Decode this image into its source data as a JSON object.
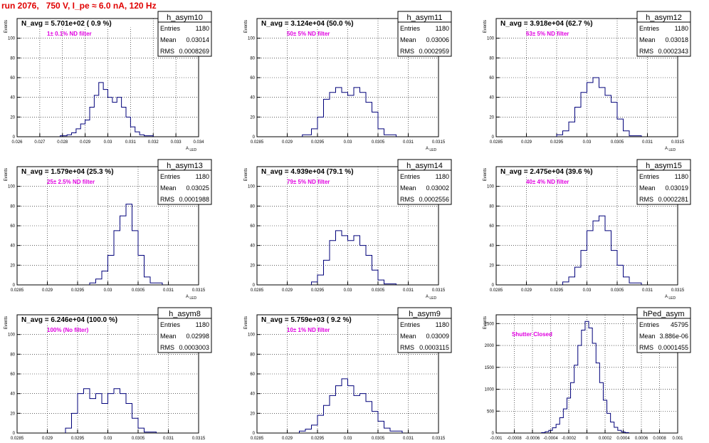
{
  "header": {
    "title": "run 2076,   750 V, I_pe ≈ 6.0 nA, 120 Hz"
  },
  "stats_labels": {
    "entries": "Entries",
    "mean": "Mean",
    "rms": "RMS"
  },
  "colors": {
    "title": "#e00000",
    "annotation": "#e000e0",
    "histogram": "#00007a",
    "grid": "#000000"
  },
  "chart_data": [
    {
      "type": "histogram",
      "name": "h_asym10",
      "navg": "N_avg = 5.701e+02 ( 0.9 %)",
      "filter": "1± 0.1% ND filter",
      "stats": {
        "entries": "1180",
        "mean": "0.03014",
        "rms": "0.0008269"
      },
      "ylabel": "Events",
      "xlabel": "A_LED",
      "xlim": [
        0.026,
        0.034
      ],
      "ylim": [
        0,
        120
      ],
      "xticks": [
        "0.026",
        "0.027",
        "0.028",
        "0.029",
        "0.03",
        "0.031",
        "0.032",
        "0.033",
        "0.034"
      ],
      "yticks": [
        "0",
        "20",
        "40",
        "60",
        "80",
        "100"
      ],
      "bins": [
        [
          0.0279,
          0.0282,
          1
        ],
        [
          0.0282,
          0.0284,
          2
        ],
        [
          0.0284,
          0.0286,
          4
        ],
        [
          0.0286,
          0.0288,
          8
        ],
        [
          0.0288,
          0.029,
          13
        ],
        [
          0.029,
          0.0292,
          17
        ],
        [
          0.0292,
          0.0294,
          30
        ],
        [
          0.0294,
          0.0296,
          42
        ],
        [
          0.0296,
          0.0298,
          55
        ],
        [
          0.0298,
          0.03,
          48
        ],
        [
          0.03,
          0.0302,
          40
        ],
        [
          0.0302,
          0.0304,
          35
        ],
        [
          0.0304,
          0.0306,
          40
        ],
        [
          0.0306,
          0.0308,
          30
        ],
        [
          0.0308,
          0.031,
          20
        ],
        [
          0.031,
          0.0312,
          10
        ],
        [
          0.0312,
          0.0314,
          5
        ],
        [
          0.0314,
          0.0316,
          2
        ],
        [
          0.0316,
          0.032,
          1
        ]
      ]
    },
    {
      "type": "histogram",
      "name": "h_asym11",
      "navg": "N_avg = 3.124e+04 (50.0 %)",
      "filter": "50± 5% ND filter",
      "stats": {
        "entries": "1180",
        "mean": "0.03006",
        "rms": "0.0002959"
      },
      "ylabel": "Events",
      "xlabel": "A_LED",
      "xlim": [
        0.0285,
        0.0315
      ],
      "ylim": [
        0,
        120
      ],
      "xticks": [
        "0.0285",
        "0.029",
        "0.0295",
        "0.03",
        "0.0305",
        "0.031",
        "0.0315"
      ],
      "yticks": [
        "0",
        "20",
        "40",
        "60",
        "80",
        "100"
      ],
      "bins": [
        [
          0.02925,
          0.0294,
          2
        ],
        [
          0.0294,
          0.0295,
          8
        ],
        [
          0.0295,
          0.0296,
          20
        ],
        [
          0.0296,
          0.0297,
          38
        ],
        [
          0.0297,
          0.0298,
          45
        ],
        [
          0.0298,
          0.0299,
          50
        ],
        [
          0.0299,
          0.03,
          45
        ],
        [
          0.03,
          0.0301,
          42
        ],
        [
          0.0301,
          0.0302,
          50
        ],
        [
          0.0302,
          0.0303,
          45
        ],
        [
          0.0303,
          0.0304,
          35
        ],
        [
          0.0304,
          0.0305,
          25
        ],
        [
          0.0305,
          0.0306,
          8
        ],
        [
          0.0306,
          0.0308,
          2
        ]
      ]
    },
    {
      "type": "histogram",
      "name": "h_asym12",
      "navg": "N_avg = 3.918e+04 (62.7 %)",
      "filter": "63± 5% ND filter",
      "stats": {
        "entries": "1180",
        "mean": "0.03018",
        "rms": "0.0002343"
      },
      "ylabel": "Events",
      "xlabel": "A_LED",
      "xlim": [
        0.0285,
        0.0315
      ],
      "ylim": [
        0,
        120
      ],
      "xticks": [
        "0.0285",
        "0.029",
        "0.0295",
        "0.03",
        "0.0305",
        "0.031",
        "0.0315"
      ],
      "yticks": [
        "0",
        "20",
        "40",
        "60",
        "80",
        "100"
      ],
      "bins": [
        [
          0.0295,
          0.0296,
          2
        ],
        [
          0.0296,
          0.0297,
          6
        ],
        [
          0.0297,
          0.0298,
          15
        ],
        [
          0.0298,
          0.0299,
          30
        ],
        [
          0.0299,
          0.03,
          45
        ],
        [
          0.03,
          0.0301,
          55
        ],
        [
          0.0301,
          0.0302,
          60
        ],
        [
          0.0302,
          0.0303,
          50
        ],
        [
          0.0303,
          0.0304,
          42
        ],
        [
          0.0304,
          0.0305,
          35
        ],
        [
          0.0305,
          0.0306,
          18
        ],
        [
          0.0306,
          0.0307,
          6
        ],
        [
          0.0307,
          0.0309,
          1
        ]
      ]
    },
    {
      "type": "histogram",
      "name": "h_asym13",
      "navg": "N_avg = 1.579e+04 (25.3 %)",
      "filter": "25± 2.5% ND filter",
      "stats": {
        "entries": "1180",
        "mean": "0.03025",
        "rms": "0.0001988"
      },
      "ylabel": "Events",
      "xlabel": "A_LED",
      "xlim": [
        0.0285,
        0.0315
      ],
      "ylim": [
        0,
        120
      ],
      "xticks": [
        "0.0285",
        "0.029",
        "0.0295",
        "0.03",
        "0.0305",
        "0.031",
        "0.0315"
      ],
      "yticks": [
        "0",
        "20",
        "40",
        "60",
        "80",
        "100"
      ],
      "bins": [
        [
          0.0297,
          0.0298,
          2
        ],
        [
          0.0298,
          0.0299,
          6
        ],
        [
          0.0299,
          0.03,
          14
        ],
        [
          0.03,
          0.0301,
          30
        ],
        [
          0.0301,
          0.0302,
          55
        ],
        [
          0.0302,
          0.0303,
          70
        ],
        [
          0.0303,
          0.0304,
          82
        ],
        [
          0.0304,
          0.0305,
          55
        ],
        [
          0.0305,
          0.0306,
          30
        ],
        [
          0.0306,
          0.0307,
          8
        ],
        [
          0.0307,
          0.0309,
          2
        ]
      ]
    },
    {
      "type": "histogram",
      "name": "h_asym14",
      "navg": "N_avg = 4.939e+04 (79.1 %)",
      "filter": "79± 5% ND filter",
      "stats": {
        "entries": "1180",
        "mean": "0.03002",
        "rms": "0.0002556"
      },
      "ylabel": "Events",
      "xlabel": "A_LED",
      "xlim": [
        0.0285,
        0.0315
      ],
      "ylim": [
        0,
        120
      ],
      "xticks": [
        "0.0285",
        "0.029",
        "0.0295",
        "0.03",
        "0.0305",
        "0.031",
        "0.0315"
      ],
      "yticks": [
        "0",
        "20",
        "40",
        "60",
        "80",
        "100"
      ],
      "bins": [
        [
          0.0294,
          0.0295,
          3
        ],
        [
          0.0295,
          0.0296,
          10
        ],
        [
          0.0296,
          0.0297,
          25
        ],
        [
          0.0297,
          0.0298,
          45
        ],
        [
          0.0298,
          0.0299,
          55
        ],
        [
          0.0299,
          0.03,
          50
        ],
        [
          0.03,
          0.0301,
          45
        ],
        [
          0.0301,
          0.0302,
          50
        ],
        [
          0.0302,
          0.0303,
          40
        ],
        [
          0.0303,
          0.0304,
          30
        ],
        [
          0.0304,
          0.0305,
          15
        ],
        [
          0.0305,
          0.0306,
          5
        ],
        [
          0.0306,
          0.0308,
          1
        ]
      ]
    },
    {
      "type": "histogram",
      "name": "h_asym15",
      "navg": "N_avg = 2.475e+04 (39.6 %)",
      "filter": "40± 4% ND filter",
      "stats": {
        "entries": "1180",
        "mean": "0.03019",
        "rms": "0.0002281"
      },
      "ylabel": "Events",
      "xlabel": "A_LED",
      "xlim": [
        0.0285,
        0.0315
      ],
      "ylim": [
        0,
        120
      ],
      "xticks": [
        "0.0285",
        "0.029",
        "0.0295",
        "0.03",
        "0.0305",
        "0.031",
        "0.0315"
      ],
      "yticks": [
        "0",
        "20",
        "40",
        "60",
        "80",
        "100"
      ],
      "bins": [
        [
          0.0296,
          0.0297,
          3
        ],
        [
          0.0297,
          0.0298,
          8
        ],
        [
          0.0298,
          0.0299,
          18
        ],
        [
          0.0299,
          0.03,
          35
        ],
        [
          0.03,
          0.0301,
          55
        ],
        [
          0.0301,
          0.0302,
          65
        ],
        [
          0.0302,
          0.0303,
          70
        ],
        [
          0.0303,
          0.0304,
          55
        ],
        [
          0.0304,
          0.0305,
          35
        ],
        [
          0.0305,
          0.0306,
          20
        ],
        [
          0.0306,
          0.0307,
          8
        ],
        [
          0.0307,
          0.0309,
          2
        ]
      ]
    },
    {
      "type": "histogram",
      "name": "h_asym8",
      "navg": "N_avg = 6.246e+04 (100.0 %)",
      "filter": "100% (No filter)",
      "stats": {
        "entries": "1180",
        "mean": "0.02998",
        "rms": "0.0003003"
      },
      "ylabel": "Events",
      "xlabel": "A_LED",
      "xlim": [
        0.0285,
        0.0315
      ],
      "ylim": [
        0,
        120
      ],
      "xticks": [
        "0.0285",
        "0.029",
        "0.0295",
        "0.03",
        "0.0305",
        "0.031",
        "0.0315"
      ],
      "yticks": [
        "0",
        "20",
        "40",
        "60",
        "80",
        "100"
      ],
      "bins": [
        [
          0.0293,
          0.0294,
          5
        ],
        [
          0.0294,
          0.0295,
          20
        ],
        [
          0.0295,
          0.0296,
          40
        ],
        [
          0.0296,
          0.0297,
          45
        ],
        [
          0.0297,
          0.0298,
          35
        ],
        [
          0.0298,
          0.0299,
          40
        ],
        [
          0.0299,
          0.03,
          30
        ],
        [
          0.03,
          0.0301,
          40
        ],
        [
          0.0301,
          0.0302,
          45
        ],
        [
          0.0302,
          0.0303,
          40
        ],
        [
          0.0303,
          0.0304,
          30
        ],
        [
          0.0304,
          0.0305,
          15
        ],
        [
          0.0305,
          0.0306,
          5
        ],
        [
          0.0306,
          0.0308,
          1
        ]
      ]
    },
    {
      "type": "histogram",
      "name": "h_asym9",
      "navg": "N_avg = 5.759e+03 ( 9.2 %)",
      "filter": "10± 1% ND filter",
      "stats": {
        "entries": "1180",
        "mean": "0.03009",
        "rms": "0.0003115"
      },
      "ylabel": "Events",
      "xlabel": "A_LED",
      "xlim": [
        0.0285,
        0.0315
      ],
      "ylim": [
        0,
        120
      ],
      "xticks": [
        "0.0285",
        "0.029",
        "0.0295",
        "0.03",
        "0.0305",
        "0.031",
        "0.0315"
      ],
      "yticks": [
        "0",
        "20",
        "40",
        "60",
        "80",
        "100"
      ],
      "bins": [
        [
          0.0292,
          0.0293,
          2
        ],
        [
          0.0293,
          0.0294,
          4
        ],
        [
          0.0294,
          0.0295,
          8
        ],
        [
          0.0295,
          0.0296,
          18
        ],
        [
          0.0296,
          0.0297,
          28
        ],
        [
          0.0297,
          0.0298,
          38
        ],
        [
          0.0298,
          0.0299,
          48
        ],
        [
          0.0299,
          0.03,
          55
        ],
        [
          0.03,
          0.0301,
          48
        ],
        [
          0.0301,
          0.0302,
          38
        ],
        [
          0.0302,
          0.0303,
          40
        ],
        [
          0.0303,
          0.0304,
          32
        ],
        [
          0.0304,
          0.0305,
          22
        ],
        [
          0.0305,
          0.0306,
          12
        ],
        [
          0.0306,
          0.0307,
          5
        ],
        [
          0.0307,
          0.0309,
          2
        ]
      ]
    },
    {
      "type": "histogram",
      "name": "hPed_asym",
      "navg": "",
      "filter": "Shutter Closed",
      "stats": {
        "entries": "45795",
        "mean": "3.886e-06",
        "rms": "0.0001455"
      },
      "ylabel": "Events",
      "xlabel": "",
      "xlim": [
        -0.001,
        0.001
      ],
      "ylim": [
        0,
        2700
      ],
      "xticks": [
        "-0.001",
        "-0.0008",
        "-0.0006",
        "-0.0004",
        "-0.0002",
        "0",
        "0.0002",
        "0.0004",
        "0.0006",
        "0.0008",
        "0.001"
      ],
      "yticks": [
        "0",
        "500",
        "1000",
        "1500",
        "2000",
        "2500"
      ],
      "bins": [
        [
          -0.0005,
          -0.00046,
          10
        ],
        [
          -0.00046,
          -0.00042,
          30
        ],
        [
          -0.00042,
          -0.00038,
          60
        ],
        [
          -0.00038,
          -0.00034,
          120
        ],
        [
          -0.00034,
          -0.0003,
          200
        ],
        [
          -0.0003,
          -0.00026,
          350
        ],
        [
          -0.00026,
          -0.00022,
          550
        ],
        [
          -0.00022,
          -0.00018,
          800
        ],
        [
          -0.00018,
          -0.00014,
          1150
        ],
        [
          -0.00014,
          -0.0001,
          1550
        ],
        [
          -0.0001,
          -6e-05,
          2000
        ],
        [
          -6e-05,
          -2e-05,
          2350
        ],
        [
          -2e-05,
          2e-05,
          2550
        ],
        [
          2e-05,
          6e-05,
          2400
        ],
        [
          6e-05,
          0.0001,
          2050
        ],
        [
          0.0001,
          0.00014,
          1600
        ],
        [
          0.00014,
          0.00018,
          1150
        ],
        [
          0.00018,
          0.00022,
          750
        ],
        [
          0.00022,
          0.00026,
          450
        ],
        [
          0.00026,
          0.0003,
          250
        ],
        [
          0.0003,
          0.00034,
          130
        ],
        [
          0.00034,
          0.00038,
          60
        ],
        [
          0.00038,
          0.00042,
          25
        ],
        [
          0.00042,
          0.00046,
          10
        ]
      ]
    }
  ]
}
